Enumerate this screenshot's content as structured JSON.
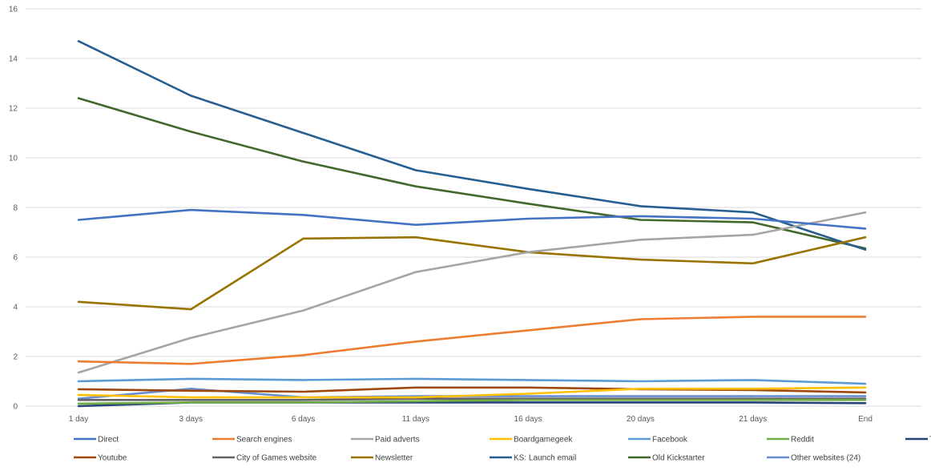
{
  "chart_data": {
    "type": "line",
    "title": "",
    "xlabel": "",
    "ylabel": "",
    "ylim": [
      0,
      16
    ],
    "yticks": [
      0,
      2,
      4,
      6,
      8,
      10,
      12,
      14,
      16
    ],
    "grid": true,
    "legend": "bottom",
    "categories": [
      "1 day",
      "3 days",
      "6 days",
      "11 days",
      "16 days",
      "20 days",
      "21 days",
      "End"
    ],
    "series": [
      {
        "name": "Direct",
        "color": "#4472C4",
        "values": [
          7.5,
          7.9,
          7.7,
          7.3,
          7.55,
          7.65,
          7.55,
          7.15
        ]
      },
      {
        "name": "Search engines",
        "color": "#ED7D31",
        "values": [
          1.8,
          1.7,
          2.05,
          2.6,
          3.05,
          3.5,
          3.6,
          3.6
        ]
      },
      {
        "name": "Paid adverts",
        "color": "#A5A5A5",
        "values": [
          1.35,
          2.75,
          3.85,
          5.4,
          6.2,
          6.7,
          6.9,
          7.8
        ]
      },
      {
        "name": "Boardgamegeek",
        "color": "#FFC000",
        "values": [
          0.45,
          0.35,
          0.35,
          0.35,
          0.5,
          0.7,
          0.7,
          0.75
        ]
      },
      {
        "name": "Facebook",
        "color": "#5B9BD5",
        "values": [
          1.0,
          1.1,
          1.05,
          1.1,
          1.05,
          1.0,
          1.05,
          0.9
        ]
      },
      {
        "name": "Reddit",
        "color": "#70AD47",
        "values": [
          0.1,
          0.15,
          0.15,
          0.2,
          0.25,
          0.25,
          0.25,
          0.25
        ]
      },
      {
        "name": "Twitter",
        "color": "#264478",
        "values": [
          0.0,
          0.15,
          0.15,
          0.15,
          0.15,
          0.15,
          0.15,
          0.12
        ]
      },
      {
        "name": "Youtube",
        "color": "#9E480E",
        "values": [
          0.68,
          0.62,
          0.58,
          0.75,
          0.75,
          0.68,
          0.65,
          0.55
        ]
      },
      {
        "name": "City of Games website",
        "color": "#636363",
        "values": [
          0.25,
          0.25,
          0.25,
          0.3,
          0.3,
          0.3,
          0.3,
          0.3
        ]
      },
      {
        "name": "Newsletter",
        "color": "#997300",
        "values": [
          4.2,
          3.9,
          6.75,
          6.8,
          6.2,
          5.9,
          5.75,
          6.8
        ]
      },
      {
        "name": "KS: Launch email",
        "color": "#255E91",
        "values": [
          14.7,
          12.5,
          11.0,
          9.5,
          8.75,
          8.05,
          7.8,
          6.3
        ]
      },
      {
        "name": "Old Kickstarter",
        "color": "#43682B",
        "values": [
          12.4,
          11.05,
          9.85,
          8.85,
          8.15,
          7.5,
          7.4,
          6.35
        ]
      },
      {
        "name": "Other websites (24)",
        "color": "#698ED0",
        "values": [
          0.3,
          0.7,
          0.35,
          0.4,
          0.4,
          0.4,
          0.4,
          0.4
        ]
      }
    ]
  }
}
